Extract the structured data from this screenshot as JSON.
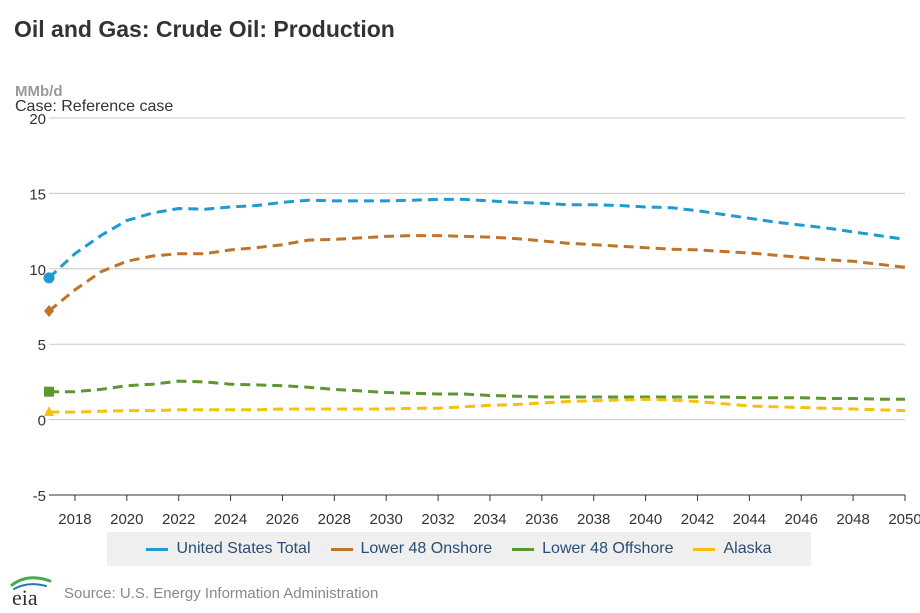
{
  "header": {
    "title": "Oil and Gas: Crude Oil: Production",
    "unit": "MMb/d",
    "case": "Case: Reference case"
  },
  "footer": {
    "source": "Source: U.S. Energy Information Administration",
    "logo_text": "eia"
  },
  "colors": {
    "grid": "#c8c8c8",
    "axis": "#333333"
  },
  "chart_data": {
    "type": "line",
    "title": "Oil and Gas: Crude Oil: Production",
    "ylabel": "MMb/d",
    "ylim": [
      -5,
      20
    ],
    "yticks": [
      -5,
      0,
      5,
      10,
      15,
      20
    ],
    "xlim": [
      2017,
      2050
    ],
    "xticks": [
      2018,
      2020,
      2022,
      2024,
      2026,
      2028,
      2030,
      2032,
      2034,
      2036,
      2038,
      2040,
      2042,
      2044,
      2046,
      2048,
      2050
    ],
    "grid": "horizontal",
    "legend_position": "bottom",
    "x": [
      2017,
      2018,
      2019,
      2020,
      2021,
      2022,
      2023,
      2024,
      2025,
      2026,
      2027,
      2028,
      2029,
      2030,
      2031,
      2032,
      2033,
      2034,
      2035,
      2036,
      2037,
      2038,
      2039,
      2040,
      2041,
      2042,
      2043,
      2044,
      2045,
      2046,
      2047,
      2048,
      2049,
      2050
    ],
    "series": [
      {
        "name": "United States Total",
        "color": "#1f9bcf",
        "marker": "circle",
        "values": [
          9.4,
          11.0,
          12.2,
          13.2,
          13.7,
          14.0,
          13.95,
          14.1,
          14.2,
          14.4,
          14.55,
          14.5,
          14.5,
          14.5,
          14.55,
          14.6,
          14.6,
          14.5,
          14.4,
          14.35,
          14.25,
          14.25,
          14.2,
          14.1,
          14.05,
          13.85,
          13.6,
          13.35,
          13.1,
          12.9,
          12.7,
          12.45,
          12.2,
          11.95
        ]
      },
      {
        "name": "Lower 48 Onshore",
        "color": "#c0742a",
        "marker": "diamond",
        "values": [
          7.2,
          8.6,
          9.8,
          10.5,
          10.85,
          11.0,
          11.0,
          11.25,
          11.4,
          11.6,
          11.9,
          11.95,
          12.05,
          12.15,
          12.2,
          12.2,
          12.15,
          12.1,
          12.0,
          11.85,
          11.7,
          11.6,
          11.5,
          11.4,
          11.3,
          11.25,
          11.15,
          11.05,
          10.9,
          10.75,
          10.6,
          10.5,
          10.3,
          10.1
        ]
      },
      {
        "name": "Lower 48 Offshore",
        "color": "#5d9732",
        "marker": "square",
        "values": [
          1.85,
          1.85,
          2.0,
          2.25,
          2.35,
          2.55,
          2.5,
          2.35,
          2.3,
          2.25,
          2.15,
          2.0,
          1.9,
          1.8,
          1.75,
          1.7,
          1.7,
          1.6,
          1.55,
          1.5,
          1.5,
          1.5,
          1.5,
          1.5,
          1.5,
          1.5,
          1.5,
          1.45,
          1.45,
          1.45,
          1.4,
          1.4,
          1.35,
          1.35
        ]
      },
      {
        "name": "Alaska",
        "color": "#f4c20d",
        "marker": "triangle",
        "values": [
          0.5,
          0.5,
          0.55,
          0.6,
          0.6,
          0.65,
          0.65,
          0.65,
          0.65,
          0.7,
          0.7,
          0.7,
          0.7,
          0.7,
          0.75,
          0.75,
          0.85,
          0.95,
          1.0,
          1.1,
          1.2,
          1.25,
          1.3,
          1.35,
          1.3,
          1.2,
          1.05,
          0.9,
          0.85,
          0.8,
          0.75,
          0.7,
          0.65,
          0.6
        ]
      }
    ]
  }
}
